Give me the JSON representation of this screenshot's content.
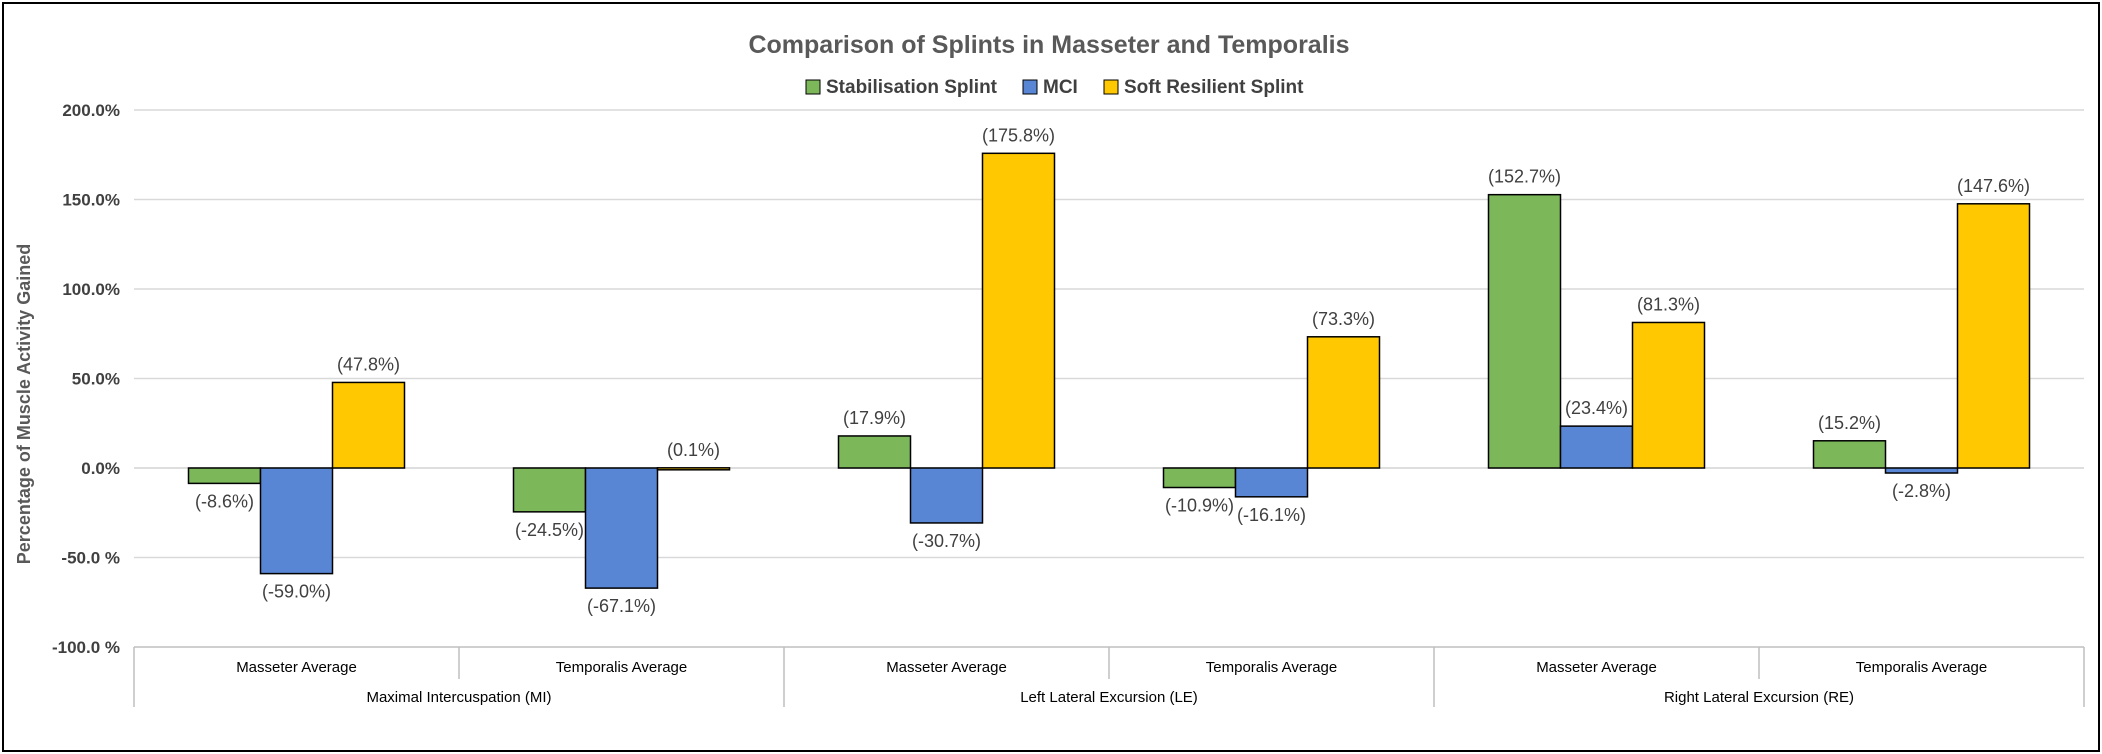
{
  "chart_data": {
    "type": "bar",
    "title": "Comparison of Splints in Masseter and Temporalis",
    "ylabel": "Percentage of Muscle Activity Gained",
    "xlabel": "",
    "ylim": [
      -100,
      200
    ],
    "ytick_values": [
      200,
      150,
      100,
      50,
      0,
      -50,
      -100
    ],
    "ytick_labels": [
      "200.0%",
      "150.0%",
      "100.0%",
      "50.0%",
      "0.0%",
      "-50.0 %",
      "-100.0 %"
    ],
    "grid": "horizontal",
    "legend_position": "top",
    "categories": [
      "Masseter Average",
      "Temporalis Average",
      "Masseter Average",
      "Temporalis Average",
      "Masseter Average",
      "Temporalis Average"
    ],
    "groups": [
      {
        "label": "Maximal Intercuspation (MI)",
        "span": 2
      },
      {
        "label": "Left Lateral Excursion (LE)",
        "span": 2
      },
      {
        "label": "Right Lateral Excursion (RE)",
        "span": 2
      }
    ],
    "series": [
      {
        "name": "Stabilisation Splint",
        "color": "#7cb85a",
        "values": [
          -8.6,
          -24.5,
          17.9,
          -10.9,
          152.7,
          15.2
        ],
        "labels": [
          "(-8.6%)",
          "(-24.5%)",
          "(17.9%)",
          "(-10.9%)",
          "(152.7%)",
          "(15.2%)"
        ]
      },
      {
        "name": "MCI",
        "color": "#5886d4",
        "values": [
          -59.0,
          -67.1,
          -30.7,
          -16.1,
          23.4,
          -2.8
        ],
        "labels": [
          "(-59.0%)",
          "(-67.1%)",
          "(-30.7%)",
          "(-16.1%)",
          "(23.4%)",
          "(-2.8%)"
        ]
      },
      {
        "name": "Soft Resilient Splint",
        "color": "#ffc800",
        "values": [
          47.8,
          0.1,
          175.8,
          73.3,
          81.3,
          147.6
        ],
        "labels": [
          "(47.8%)",
          "(0.1%)",
          "(175.8%)",
          "(73.3%)",
          "(81.3%)",
          "(147.6%)"
        ]
      }
    ]
  }
}
